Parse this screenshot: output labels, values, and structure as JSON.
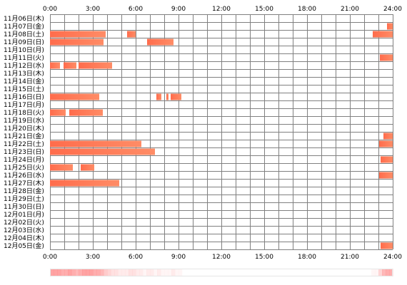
{
  "chart_data": {
    "type": "timeline",
    "x_ticks": [
      "0:00",
      "3:00",
      "6:00",
      "9:00",
      "12:00",
      "15:00",
      "18:00",
      "21:00",
      "24:00"
    ],
    "x_range_hours": [
      0,
      24
    ],
    "grid": true,
    "colors": {
      "bar": "#ff6c4c",
      "bar_light": "#ff8c66",
      "grid_major": "#808080",
      "grid_minor": "#b0b0b0",
      "heat": "#ff8080"
    },
    "rows": [
      {
        "label": "11月06日(木)",
        "segments": []
      },
      {
        "label": "11月07日(金)",
        "segments": [
          [
            23.6,
            24.0
          ]
        ]
      },
      {
        "label": "11月08日(土)",
        "segments": [
          [
            0.0,
            3.9
          ],
          [
            5.4,
            6.0
          ],
          [
            22.6,
            24.0
          ]
        ]
      },
      {
        "label": "11月09日(日)",
        "segments": [
          [
            0.0,
            3.75
          ],
          [
            6.8,
            8.65
          ]
        ]
      },
      {
        "label": "11月10日(月)",
        "segments": []
      },
      {
        "label": "11月11日(火)",
        "segments": [
          [
            23.1,
            24.0
          ]
        ]
      },
      {
        "label": "11月12日(水)",
        "segments": [
          [
            0.0,
            0.7
          ],
          [
            0.95,
            1.85
          ],
          [
            2.0,
            4.35
          ]
        ]
      },
      {
        "label": "11月13日(木)",
        "segments": []
      },
      {
        "label": "11月14日(金)",
        "segments": []
      },
      {
        "label": "11月15日(土)",
        "segments": []
      },
      {
        "label": "11月16日(日)",
        "segments": [
          [
            0.0,
            3.45
          ],
          [
            7.45,
            7.8
          ],
          [
            8.15,
            8.3
          ],
          [
            8.45,
            9.2
          ]
        ]
      },
      {
        "label": "11月17日(月)",
        "segments": []
      },
      {
        "label": "11月18日(火)",
        "segments": [
          [
            0.0,
            1.1
          ],
          [
            1.35,
            3.7
          ]
        ]
      },
      {
        "label": "11月19日(水)",
        "segments": []
      },
      {
        "label": "11月20日(木)",
        "segments": []
      },
      {
        "label": "11月21日(金)",
        "segments": [
          [
            23.35,
            24.0
          ]
        ]
      },
      {
        "label": "11月22日(土)",
        "segments": [
          [
            0.0,
            6.4
          ],
          [
            23.05,
            24.0
          ]
        ]
      },
      {
        "label": "11月23日(日)",
        "segments": [
          [
            0.0,
            7.35
          ]
        ]
      },
      {
        "label": "11月24日(月)",
        "segments": [
          [
            23.15,
            24.0
          ]
        ]
      },
      {
        "label": "11月25日(火)",
        "segments": [
          [
            0.0,
            1.6
          ],
          [
            2.15,
            3.1
          ]
        ]
      },
      {
        "label": "11月26日(水)",
        "segments": [
          [
            23.05,
            24.0
          ]
        ]
      },
      {
        "label": "11月27日(木)",
        "segments": [
          [
            0.0,
            4.85
          ]
        ]
      },
      {
        "label": "11月28日(金)",
        "segments": []
      },
      {
        "label": "11月29日(土)",
        "segments": []
      },
      {
        "label": "11月30日(日)",
        "segments": []
      },
      {
        "label": "12月01日(月)",
        "segments": []
      },
      {
        "label": "12月02日(火)",
        "segments": []
      },
      {
        "label": "12月03日(水)",
        "segments": []
      },
      {
        "label": "12月04日(木)",
        "segments": []
      },
      {
        "label": "12月05日(金)",
        "segments": [
          [
            23.15,
            24.0
          ]
        ]
      }
    ]
  }
}
